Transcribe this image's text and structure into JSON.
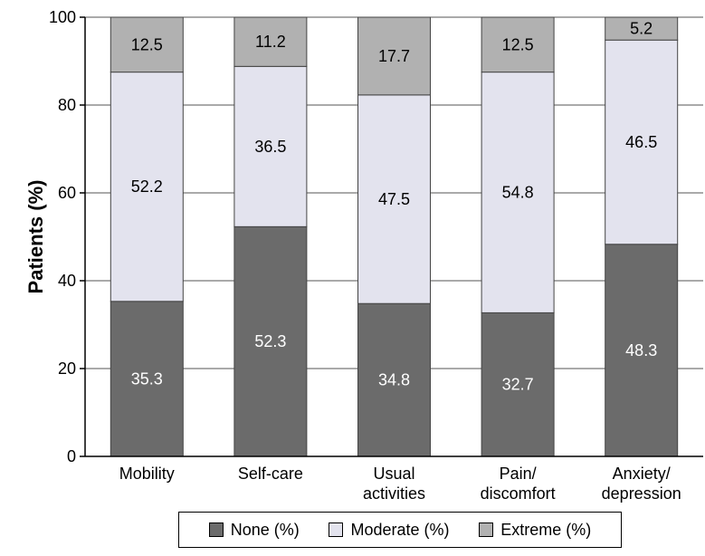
{
  "chart_data": {
    "type": "bar",
    "stacked": true,
    "title": "",
    "xlabel": "",
    "ylabel": "Patients (%)",
    "ylim": [
      0,
      100
    ],
    "yticks": [
      0,
      20,
      40,
      60,
      80,
      100
    ],
    "grid": "horizontal",
    "legend_position": "bottom",
    "categories": [
      [
        "Mobility"
      ],
      [
        "Self-care"
      ],
      [
        "Usual",
        "activities"
      ],
      [
        "Pain/",
        "discomfort"
      ],
      [
        "Anxiety/",
        "depression"
      ]
    ],
    "series": [
      {
        "name": "None (%)",
        "color": "#6b6b6b",
        "label_color": "#ffffff",
        "values": [
          35.3,
          52.3,
          34.8,
          32.7,
          48.3
        ]
      },
      {
        "name": "Moderate (%)",
        "color": "#e3e3ee",
        "label_color": "#000000",
        "values": [
          52.2,
          36.5,
          47.5,
          54.8,
          46.5
        ]
      },
      {
        "name": "Extreme (%)",
        "color": "#b1b1b1",
        "label_color": "#000000",
        "values": [
          12.5,
          11.2,
          17.7,
          12.5,
          5.2
        ]
      }
    ]
  }
}
